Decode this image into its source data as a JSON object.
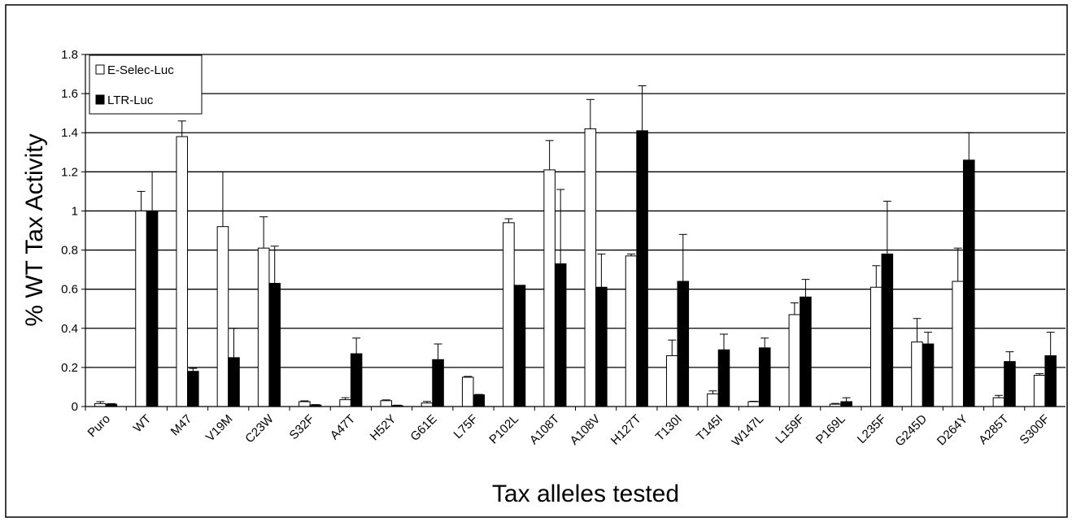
{
  "chart_data": {
    "type": "bar",
    "xlabel": "Tax alleles tested",
    "ylabel": "% WT Tax Activity",
    "ylim": [
      0,
      1.8
    ],
    "yticks": [
      "0",
      "0.2",
      "0.4",
      "0.6",
      "0.8",
      "1",
      "1.2",
      "1.4",
      "1.6",
      "1.8"
    ],
    "grid": true,
    "legend_position": "top-left",
    "categories": [
      "Puro",
      "WT",
      "M47",
      "V19M",
      "C23W",
      "S32F",
      "A47T",
      "H52Y",
      "G61E",
      "L75F",
      "P102L",
      "A108T",
      "A108V",
      "H127T",
      "T130I",
      "T145I",
      "W147L",
      "L159F",
      "P169L",
      "L235F",
      "G245D",
      "D264Y",
      "A285T",
      "S300F"
    ],
    "series": [
      {
        "name": "E-Selec-Luc",
        "fill": "#ffffff",
        "values": [
          0.015,
          1.0,
          1.38,
          0.92,
          0.81,
          0.025,
          0.035,
          0.03,
          0.018,
          0.15,
          0.94,
          1.21,
          1.42,
          0.77,
          0.26,
          0.065,
          0.025,
          0.47,
          0.012,
          0.61,
          0.33,
          0.64,
          0.045,
          0.16
        ],
        "errors": [
          0.01,
          0.1,
          0.08,
          0.28,
          0.16,
          0.004,
          0.01,
          0.004,
          0.008,
          0.004,
          0.02,
          0.15,
          0.15,
          0.01,
          0.08,
          0.015,
          0.002,
          0.06,
          0.004,
          0.11,
          0.12,
          0.17,
          0.012,
          0.008
        ]
      },
      {
        "name": "LTR-Luc",
        "fill": "#000000",
        "values": [
          0.012,
          1.0,
          0.18,
          0.25,
          0.63,
          0.008,
          0.27,
          0.005,
          0.24,
          0.06,
          0.62,
          0.73,
          0.61,
          1.41,
          0.64,
          0.29,
          0.3,
          0.56,
          0.025,
          0.78,
          0.32,
          1.26,
          0.23,
          0.26
        ],
        "errors": [
          0.003,
          0.2,
          0.015,
          0.15,
          0.19,
          0.002,
          0.08,
          0.002,
          0.08,
          0.002,
          0.0,
          0.38,
          0.17,
          0.23,
          0.24,
          0.08,
          0.05,
          0.09,
          0.02,
          0.27,
          0.06,
          0.14,
          0.05,
          0.12
        ]
      }
    ]
  }
}
